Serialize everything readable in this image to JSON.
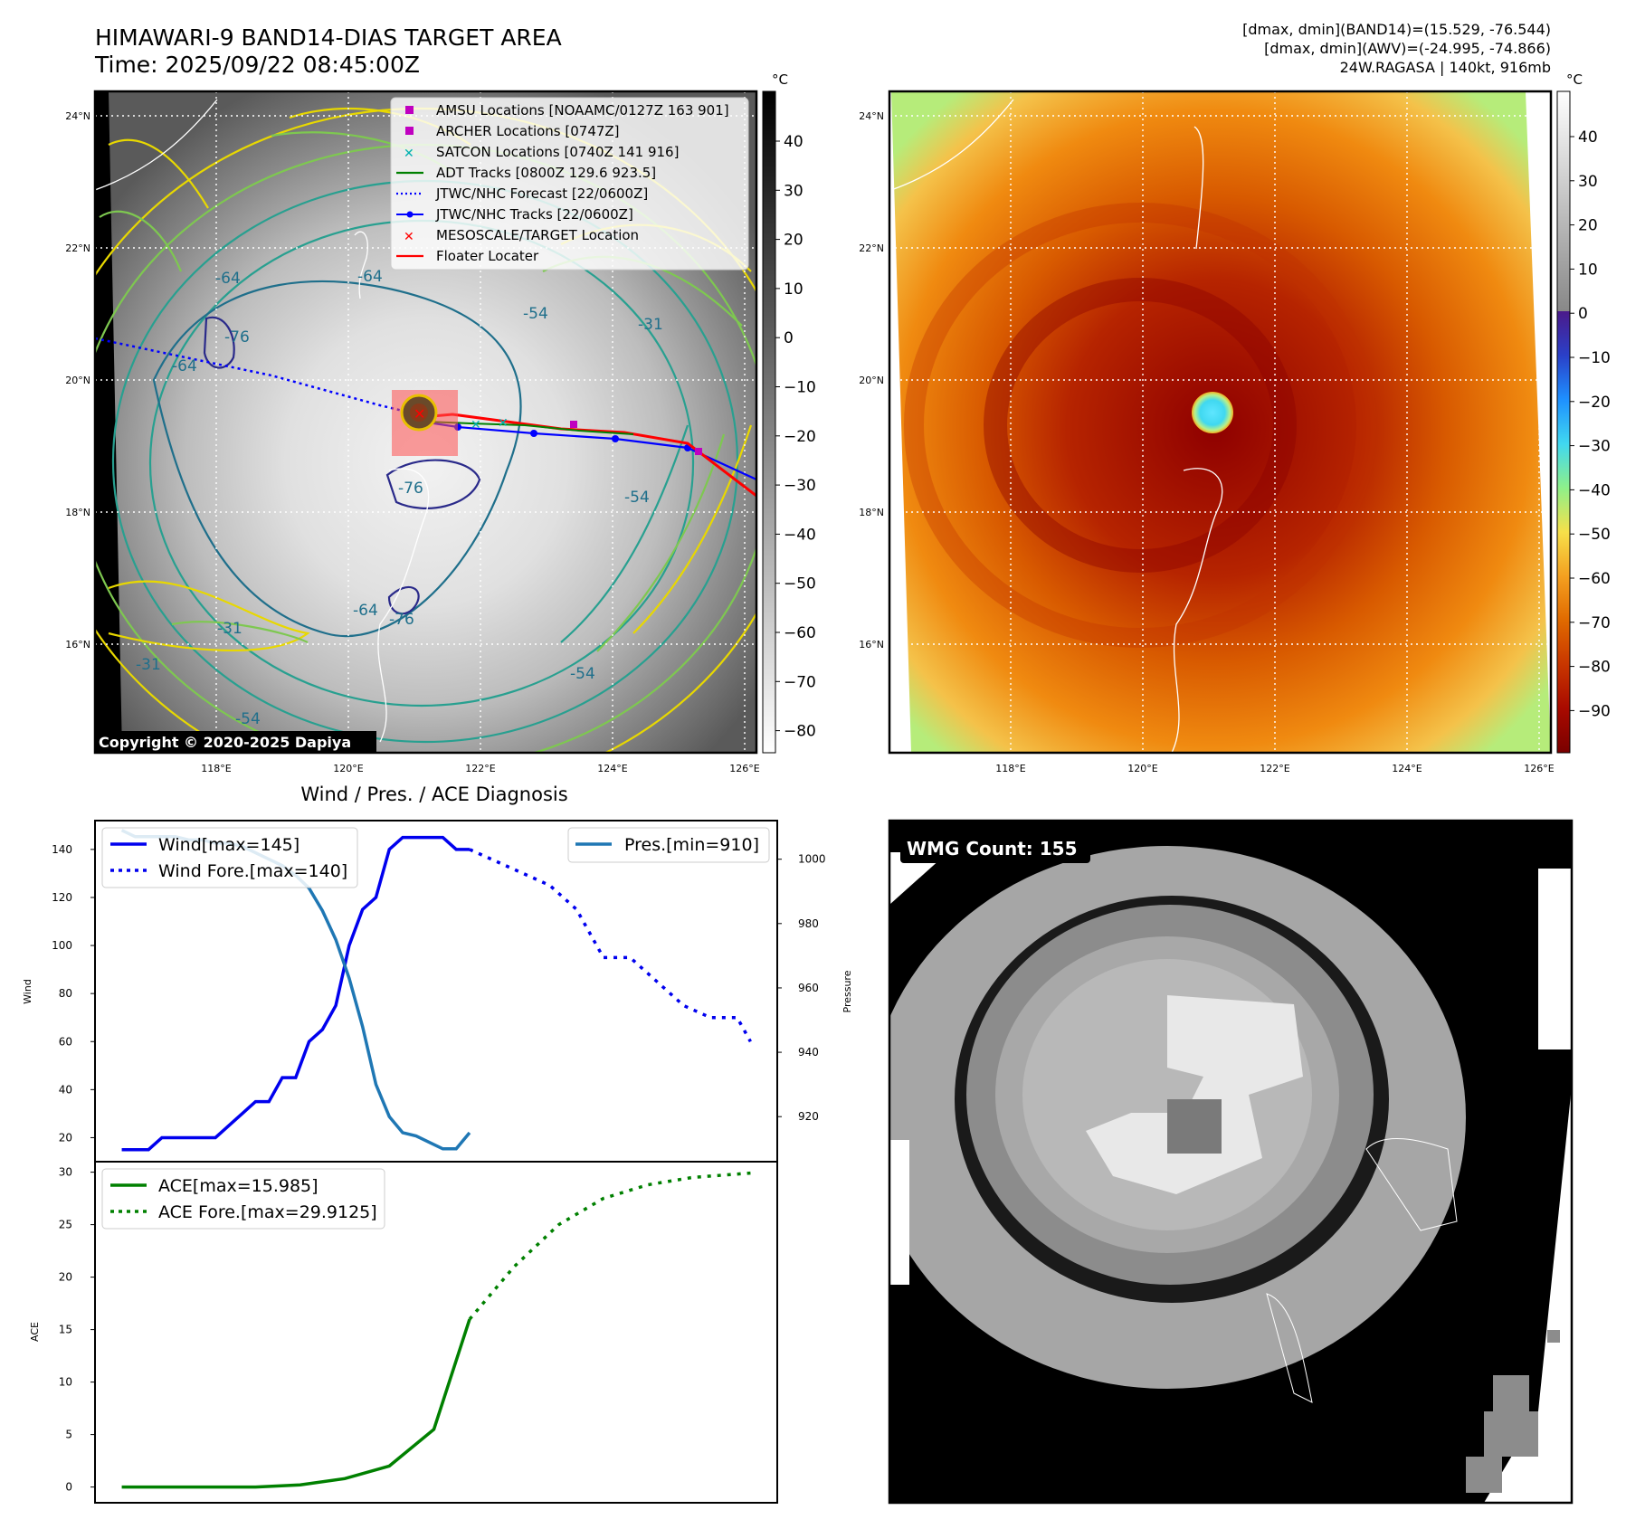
{
  "header": {
    "title": "HIMAWARI-9 BAND14-DIAS TARGET AREA",
    "time": "Time: 2025/09/22 08:45:00Z",
    "stats_line1": "[dmax, dmin](BAND14)=(15.529, -76.544)",
    "stats_line2": "[dmax, dmin](AWV)=(-24.995, -74.866)",
    "stats_line3": "24W.RAGASA | 140kt, 916mb"
  },
  "map": {
    "lat_labels": [
      "24°N",
      "22°N",
      "20°N",
      "18°N",
      "16°N"
    ],
    "lon_labels": [
      "118°E",
      "120°E",
      "122°E",
      "124°E",
      "126°E"
    ],
    "copyright": "Copyright © 2020-2025 Dapiya",
    "contour_labels": [
      "-64",
      "-64",
      "-76",
      "-64",
      "-54",
      "-31",
      "-76",
      "-54",
      "-64",
      "-76",
      "-31",
      "-31",
      "-54",
      "-54"
    ],
    "legend": [
      {
        "label": "AMSU Locations [NOAAMC/0127Z 163 901]",
        "color": "#c000c0",
        "marker": "square"
      },
      {
        "label": "ARCHER Locations [0747Z]",
        "color": "#c000c0",
        "marker": "square"
      },
      {
        "label": "SATCON Locations [0740Z 141 916]",
        "color": "#00b0b0",
        "marker": "x"
      },
      {
        "label": "ADT Tracks [0800Z 129.6 923.5]",
        "color": "#008000",
        "marker": "line"
      },
      {
        "label": "JTWC/NHC Forecast [22/0600Z]",
        "color": "#0000ff",
        "marker": "dotted"
      },
      {
        "label": "JTWC/NHC Tracks [22/0600Z]",
        "color": "#0000ff",
        "marker": "line-dot"
      },
      {
        "label": "MESOSCALE/TARGET Location",
        "color": "#ff0000",
        "marker": "x"
      },
      {
        "label": "Floater Locater",
        "color": "#ff0000",
        "marker": "line"
      }
    ]
  },
  "colorbar_gray": {
    "unit": "°C",
    "ticks": [
      "40",
      "30",
      "20",
      "10",
      "0",
      "−10",
      "−20",
      "−30",
      "−40",
      "−50",
      "−60",
      "−70",
      "−80"
    ]
  },
  "colorbar_color": {
    "unit": "°C",
    "ticks": [
      "40",
      "30",
      "20",
      "10",
      "0",
      "−10",
      "−20",
      "−30",
      "−40",
      "−50",
      "−60",
      "−70",
      "−80",
      "−90"
    ]
  },
  "wmg": {
    "label": "WMG Count: 155"
  },
  "colors": {
    "wind": "#0000ee",
    "pressure": "#1f77b4",
    "ace": "#008000",
    "track_red": "#ff0000"
  },
  "chart_data": [
    {
      "type": "line",
      "title": "Wind / Pres. / ACE Diagnosis",
      "ylabel": "Wind",
      "ylabel_right": "Pressure",
      "ylim": [
        10,
        152
      ],
      "ylim_right": [
        906,
        1012
      ],
      "yticks": [
        20,
        40,
        60,
        80,
        100,
        120,
        140
      ],
      "yticks_right": [
        920,
        940,
        960,
        980,
        1000
      ],
      "series": [
        {
          "name": "Wind[max=145]",
          "axis": "left",
          "style": "solid",
          "x": [
            0,
            3,
            6,
            9,
            12,
            15,
            18,
            21,
            24,
            27,
            30,
            33,
            36,
            39,
            42,
            45,
            48,
            51,
            54,
            57,
            60,
            63,
            66,
            69,
            72,
            75,
            78
          ],
          "values": [
            15,
            15,
            15,
            20,
            20,
            20,
            20,
            20,
            25,
            30,
            35,
            35,
            45,
            45,
            60,
            65,
            75,
            100,
            115,
            120,
            140,
            145,
            145,
            145,
            145,
            140,
            140
          ]
        },
        {
          "name": "Wind Fore.[max=140]",
          "axis": "left",
          "style": "dotted",
          "x": [
            78,
            84,
            90,
            96,
            102,
            105,
            108,
            114,
            120,
            126,
            132,
            138,
            141
          ],
          "values": [
            140,
            135,
            130,
            125,
            115,
            105,
            95,
            95,
            85,
            75,
            70,
            70,
            60
          ]
        },
        {
          "name": "Pres.[min=910]",
          "axis": "right",
          "style": "solid",
          "x": [
            0,
            3,
            6,
            9,
            12,
            15,
            18,
            21,
            24,
            27,
            30,
            33,
            36,
            39,
            42,
            45,
            48,
            51,
            54,
            57,
            60,
            63,
            66,
            69,
            72,
            75,
            78
          ],
          "values": [
            1009,
            1007,
            1007,
            1007,
            1007,
            1006,
            1006,
            1005,
            1005,
            1004,
            1002,
            1000,
            998,
            995,
            991,
            984,
            975,
            963,
            948,
            930,
            920,
            915,
            914,
            912,
            910,
            910,
            915
          ]
        }
      ]
    },
    {
      "type": "line",
      "ylabel": "ACE",
      "ylim": [
        -1.5,
        31
      ],
      "yticks": [
        0,
        5,
        10,
        15,
        20,
        25,
        30
      ],
      "series": [
        {
          "name": "ACE[max=15.985]",
          "style": "solid",
          "x": [
            0,
            10,
            20,
            30,
            40,
            50,
            60,
            70,
            78
          ],
          "values": [
            0,
            0,
            0,
            0,
            0.2,
            0.8,
            2.0,
            5.5,
            15.985
          ]
        },
        {
          "name": "ACE Fore.[max=29.9125]",
          "style": "dotted",
          "x": [
            78,
            88,
            98,
            108,
            118,
            128,
            141
          ],
          "values": [
            15.985,
            21,
            25,
            27.5,
            28.8,
            29.5,
            29.9125
          ]
        }
      ]
    }
  ]
}
